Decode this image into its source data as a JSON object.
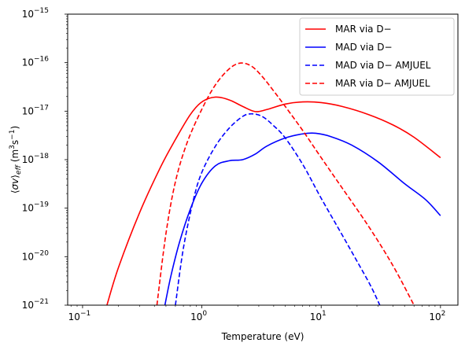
{
  "chart_data": {
    "type": "line",
    "xlabel": "Temperature (eV)",
    "ylabel": "⟨σv⟩eff (m3s−1)",
    "xscale": "log",
    "yscale": "log",
    "xlim": [
      0.075,
      140
    ],
    "ylim": [
      1e-21,
      1e-15
    ],
    "grid": false,
    "legend_position": "top-right",
    "x_ticks": [
      {
        "value": 0.1,
        "base": "10",
        "exp": "−1"
      },
      {
        "value": 1,
        "base": "10",
        "exp": "0"
      },
      {
        "value": 10,
        "base": "10",
        "exp": "1"
      },
      {
        "value": 100,
        "base": "10",
        "exp": "2"
      }
    ],
    "y_ticks": [
      {
        "value": 1e-21,
        "base": "10",
        "exp": "−21"
      },
      {
        "value": 1e-20,
        "base": "10",
        "exp": "−20"
      },
      {
        "value": 1e-19,
        "base": "10",
        "exp": "−19"
      },
      {
        "value": 1e-18,
        "base": "10",
        "exp": "−18"
      },
      {
        "value": 1e-17,
        "base": "10",
        "exp": "−17"
      },
      {
        "value": 1e-16,
        "base": "10",
        "exp": "−16"
      },
      {
        "value": 1e-15,
        "base": "10",
        "exp": "−15"
      }
    ],
    "series": [
      {
        "name": "MAR via D−",
        "color": "#ff0000",
        "dash": "solid",
        "points": [
          [
            0.16,
            1e-21
          ],
          [
            0.2,
            6e-21
          ],
          [
            0.3,
            8e-20
          ],
          [
            0.45,
            7e-19
          ],
          [
            0.6,
            2.6e-18
          ],
          [
            0.8,
            8.5e-18
          ],
          [
            1.0,
            1.55e-17
          ],
          [
            1.3,
            1.95e-17
          ],
          [
            1.7,
            1.7e-17
          ],
          [
            2.2,
            1.25e-17
          ],
          [
            2.8,
            9.8e-18
          ],
          [
            3.5,
            1.08e-17
          ],
          [
            5.0,
            1.4e-17
          ],
          [
            7.0,
            1.55e-17
          ],
          [
            10,
            1.5e-17
          ],
          [
            15,
            1.25e-17
          ],
          [
            25,
            8.5e-18
          ],
          [
            40,
            5.2e-18
          ],
          [
            60,
            2.9e-18
          ],
          [
            100,
            1.1e-18
          ]
        ]
      },
      {
        "name": "MAD via D−",
        "color": "#0000ff",
        "dash": "solid",
        "points": [
          [
            0.49,
            1e-21
          ],
          [
            0.55,
            4e-21
          ],
          [
            0.65,
            2e-20
          ],
          [
            0.8,
            9.5e-20
          ],
          [
            1.0,
            3.3e-19
          ],
          [
            1.3,
            7.5e-19
          ],
          [
            1.7,
            9.5e-19
          ],
          [
            2.2,
            1e-18
          ],
          [
            2.8,
            1.3e-18
          ],
          [
            3.5,
            1.9e-18
          ],
          [
            5.0,
            2.8e-18
          ],
          [
            7.0,
            3.4e-18
          ],
          [
            9.0,
            3.5e-18
          ],
          [
            12,
            3e-18
          ],
          [
            18,
            2e-18
          ],
          [
            30,
            9e-19
          ],
          [
            50,
            3.2e-19
          ],
          [
            75,
            1.5e-19
          ],
          [
            100,
            7e-20
          ]
        ]
      },
      {
        "name": "MAD via D− AMJUEL",
        "color": "#0000ff",
        "dash": "dashed",
        "points": [
          [
            0.6,
            1e-21
          ],
          [
            0.7,
            1.5e-20
          ],
          [
            0.85,
            1.5e-19
          ],
          [
            1.0,
            5.5e-19
          ],
          [
            1.3,
            1.9e-18
          ],
          [
            1.7,
            4.5e-18
          ],
          [
            2.2,
            7.8e-18
          ],
          [
            2.6,
            8.8e-18
          ],
          [
            3.2,
            7.8e-18
          ],
          [
            4.0,
            5e-18
          ],
          [
            5.0,
            2.8e-18
          ],
          [
            7.0,
            8e-19
          ],
          [
            10,
            1.6e-19
          ],
          [
            15,
            2.8e-20
          ],
          [
            20,
            8e-21
          ],
          [
            26,
            2.5e-21
          ],
          [
            31,
            1e-21
          ]
        ]
      },
      {
        "name": "MAR via D− AMJUEL",
        "color": "#ff0000",
        "dash": "dashed",
        "points": [
          [
            0.42,
            1e-21
          ],
          [
            0.5,
            3e-20
          ],
          [
            0.6,
            3.5e-19
          ],
          [
            0.75,
            2.2e-18
          ],
          [
            1.0,
            1.1e-17
          ],
          [
            1.3,
            3.5e-17
          ],
          [
            1.7,
            7.5e-17
          ],
          [
            2.1,
            9.8e-17
          ],
          [
            2.6,
            8.5e-17
          ],
          [
            3.2,
            5.2e-17
          ],
          [
            4.0,
            2.6e-17
          ],
          [
            5.0,
            1.25e-17
          ],
          [
            7.0,
            4e-18
          ],
          [
            10,
            1.1e-18
          ],
          [
            15,
            2.6e-19
          ],
          [
            25,
            4.2e-20
          ],
          [
            40,
            6.5e-21
          ],
          [
            60,
            1e-21
          ]
        ]
      }
    ]
  }
}
